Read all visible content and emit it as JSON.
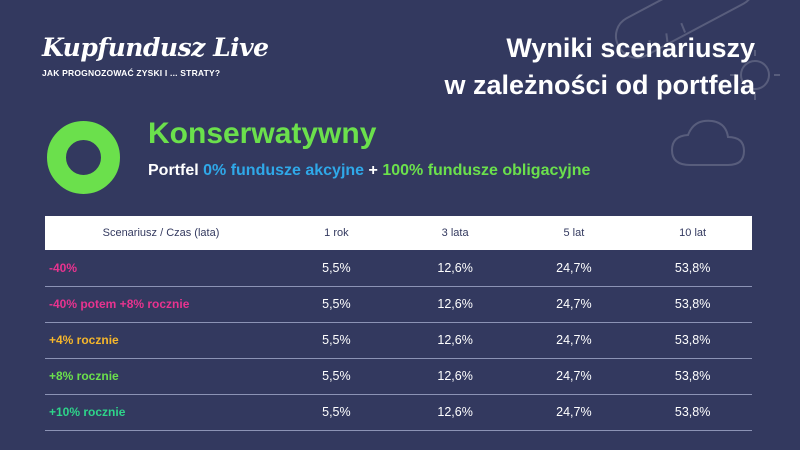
{
  "brand": {
    "name": "Kupfundusz Live",
    "tagline": "JAK PROGNOZOWAĆ ZYSKI I ... STRATY?"
  },
  "title": {
    "line1": "Wyniki scenariuszy",
    "line2": "w zależności od portfela"
  },
  "profile": {
    "name": "Konserwatywny",
    "ring_color": "#6be04c",
    "portfolio_prefix": "Portfel",
    "equity": "0% fundusze akcyjne",
    "plus": "+",
    "bonds": "100% fundusze obligacyjne"
  },
  "decoration_icons": [
    "thermometer-icon",
    "sun-icon",
    "cloud-icon"
  ],
  "table": {
    "headers": [
      "Scenariusz / Czas (lata)",
      "1 rok",
      "3 lata",
      "5 lat",
      "10 lat"
    ],
    "rows": [
      {
        "scenario": "-40%",
        "color": "#e8338f",
        "values": [
          "5,5%",
          "12,6%",
          "24,7%",
          "53,8%"
        ]
      },
      {
        "scenario": "-40% potem +8% rocznie",
        "color": "#e8338f",
        "values": [
          "5,5%",
          "12,6%",
          "24,7%",
          "53,8%"
        ]
      },
      {
        "scenario": "+4% rocznie",
        "color": "#f5b62b",
        "values": [
          "5,5%",
          "12,6%",
          "24,7%",
          "53,8%"
        ]
      },
      {
        "scenario": "+8% rocznie",
        "color": "#6be04c",
        "values": [
          "5,5%",
          "12,6%",
          "24,7%",
          "53,8%"
        ]
      },
      {
        "scenario": "+10% rocznie",
        "color": "#2ed48a",
        "values": [
          "5,5%",
          "12,6%",
          "24,7%",
          "53,8%"
        ]
      }
    ]
  }
}
